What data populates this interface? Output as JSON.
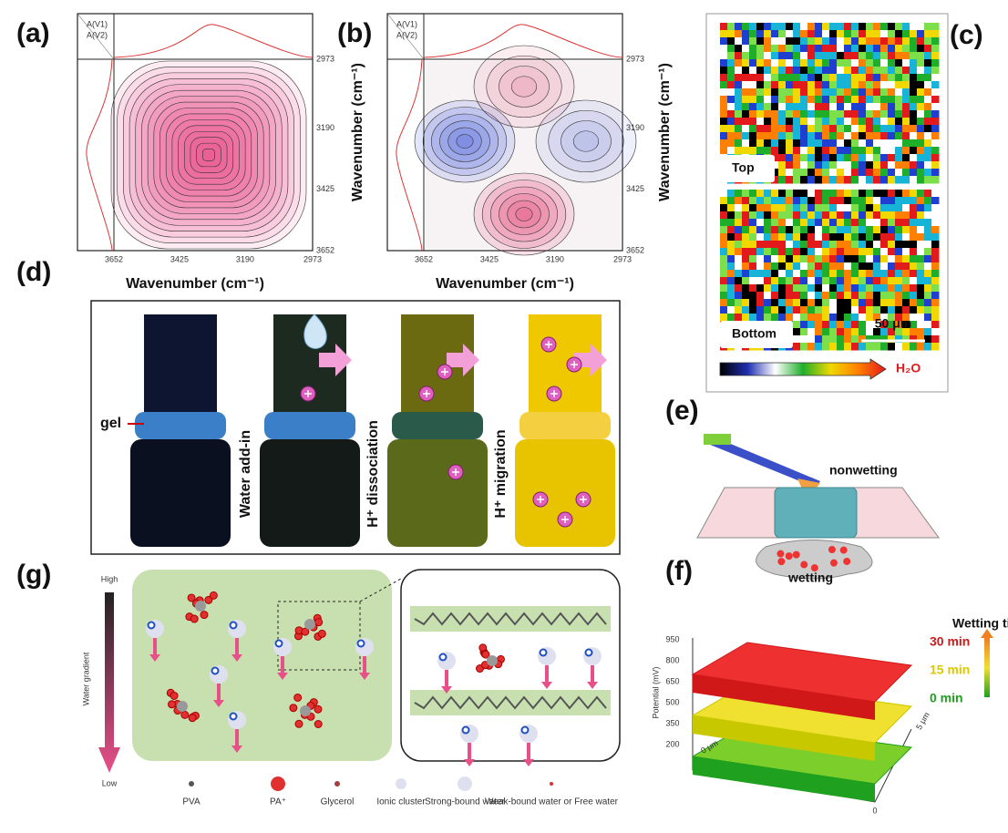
{
  "panels": {
    "a": {
      "label": "(a)",
      "trace_labels": [
        "A(V1)",
        "A(V2)"
      ],
      "x_label": "Wavenumber (cm⁻¹)",
      "y_label": "Wavenumber (cm⁻¹)",
      "x_ticks": [
        3652,
        3425,
        3190,
        2973
      ],
      "y_ticks": [
        2973,
        3190,
        3425,
        3652
      ]
    },
    "b": {
      "label": "(b)",
      "trace_labels": [
        "A(V1)",
        "A(V2)"
      ],
      "x_label": "Wavenumber (cm⁻¹)",
      "y_label": "Wavenumber (cm⁻¹)",
      "x_ticks": [
        3652,
        3425,
        3190,
        2973
      ],
      "y_ticks": [
        2973,
        3190,
        3425,
        3652
      ]
    },
    "c": {
      "label": "(c)",
      "top": "Top",
      "bottom": "Bottom",
      "scale_bar": "50 μm",
      "colorbar_label": "H₂O"
    },
    "d": {
      "label": "(d)",
      "gel": "gel",
      "steps": [
        "Water add-in",
        "H⁺ dissociation",
        "H⁺ migration"
      ]
    },
    "e": {
      "label": "(e)",
      "top": "nonwetting",
      "bottom": "wetting"
    },
    "f": {
      "label": "(f)",
      "legend_title": "Wetting time",
      "legend": [
        "30 min",
        "15 min",
        "0 min"
      ],
      "z_label": "Potential (mV)",
      "z_ticks": [
        950,
        800,
        650,
        500,
        350,
        200
      ],
      "x_label": "0 μm",
      "y_label": "5 μm",
      "origin": "0"
    },
    "g": {
      "label": "(g)",
      "high": "High",
      "low": "Low",
      "gradient_label": "Water gradient",
      "legend": [
        "PVA",
        "PA⁺",
        "Glycerol",
        "Ionic cluster",
        "Strong-bound water",
        "Weak-bound water or Free water"
      ]
    }
  }
}
